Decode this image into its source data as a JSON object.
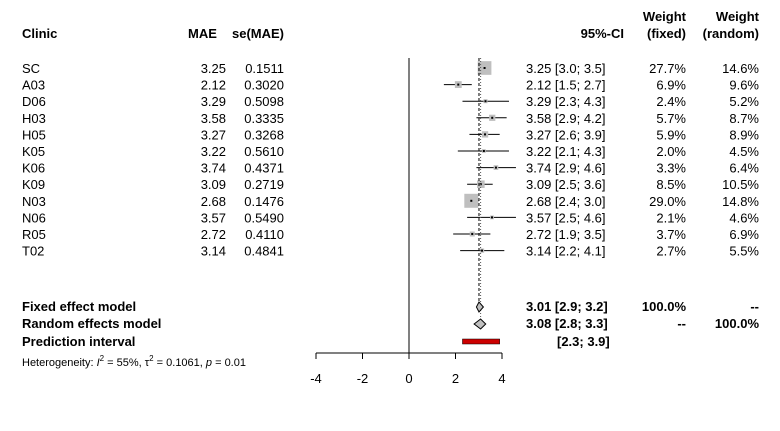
{
  "chart_data": {
    "type": "forest",
    "headers": {
      "clinic": "Clinic",
      "mae": "MAE",
      "se": "se(MAE)",
      "ci": "95%-CI",
      "weight_fixed_line1": "Weight",
      "weight_fixed_line2": "(fixed)",
      "weight_random_line1": "Weight",
      "weight_random_line2": "(random)"
    },
    "studies": [
      {
        "clinic": "SC",
        "mae": "3.25",
        "se": "0.1511",
        "ci_text": "3.25 [3.0; 3.5]",
        "w_fixed": "27.7%",
        "w_random": "14.6%",
        "est": 3.25,
        "lo": 3.0,
        "hi": 3.5,
        "weight": 27.7
      },
      {
        "clinic": "A03",
        "mae": "2.12",
        "se": "0.3020",
        "ci_text": "2.12 [1.5; 2.7]",
        "w_fixed": "6.9%",
        "w_random": "9.6%",
        "est": 2.12,
        "lo": 1.5,
        "hi": 2.7,
        "weight": 6.9
      },
      {
        "clinic": "D06",
        "mae": "3.29",
        "se": "0.5098",
        "ci_text": "3.29 [2.3; 4.3]",
        "w_fixed": "2.4%",
        "w_random": "5.2%",
        "est": 3.29,
        "lo": 2.3,
        "hi": 4.3,
        "weight": 2.4
      },
      {
        "clinic": "H03",
        "mae": "3.58",
        "se": "0.3335",
        "ci_text": "3.58 [2.9; 4.2]",
        "w_fixed": "5.7%",
        "w_random": "8.7%",
        "est": 3.58,
        "lo": 2.9,
        "hi": 4.2,
        "weight": 5.7
      },
      {
        "clinic": "H05",
        "mae": "3.27",
        "se": "0.3268",
        "ci_text": "3.27 [2.6; 3.9]",
        "w_fixed": "5.9%",
        "w_random": "8.9%",
        "est": 3.27,
        "lo": 2.6,
        "hi": 3.9,
        "weight": 5.9
      },
      {
        "clinic": "K05",
        "mae": "3.22",
        "se": "0.5610",
        "ci_text": "3.22 [2.1; 4.3]",
        "w_fixed": "2.0%",
        "w_random": "4.5%",
        "est": 3.22,
        "lo": 2.1,
        "hi": 4.3,
        "weight": 2.0
      },
      {
        "clinic": "K06",
        "mae": "3.74",
        "se": "0.4371",
        "ci_text": "3.74 [2.9; 4.6]",
        "w_fixed": "3.3%",
        "w_random": "6.4%",
        "est": 3.74,
        "lo": 2.9,
        "hi": 4.6,
        "weight": 3.3
      },
      {
        "clinic": "K09",
        "mae": "3.09",
        "se": "0.2719",
        "ci_text": "3.09 [2.5; 3.6]",
        "w_fixed": "8.5%",
        "w_random": "10.5%",
        "est": 3.09,
        "lo": 2.5,
        "hi": 3.6,
        "weight": 8.5
      },
      {
        "clinic": "N03",
        "mae": "2.68",
        "se": "0.1476",
        "ci_text": "2.68 [2.4; 3.0]",
        "w_fixed": "29.0%",
        "w_random": "14.8%",
        "est": 2.68,
        "lo": 2.4,
        "hi": 3.0,
        "weight": 29.0
      },
      {
        "clinic": "N06",
        "mae": "3.57",
        "se": "0.5490",
        "ci_text": "3.57 [2.5; 4.6]",
        "w_fixed": "2.1%",
        "w_random": "4.6%",
        "est": 3.57,
        "lo": 2.5,
        "hi": 4.6,
        "weight": 2.1
      },
      {
        "clinic": "R05",
        "mae": "2.72",
        "se": "0.4110",
        "ci_text": "2.72 [1.9; 3.5]",
        "w_fixed": "3.7%",
        "w_random": "6.9%",
        "est": 2.72,
        "lo": 1.9,
        "hi": 3.5,
        "weight": 3.7
      },
      {
        "clinic": "T02",
        "mae": "3.14",
        "se": "0.4841",
        "ci_text": "3.14 [2.2; 4.1]",
        "w_fixed": "2.7%",
        "w_random": "5.5%",
        "est": 3.14,
        "lo": 2.2,
        "hi": 4.1,
        "weight": 2.7
      }
    ],
    "fixed": {
      "label": "Fixed effect model",
      "ci_text": "3.01 [2.9; 3.2]",
      "w_fixed": "100.0%",
      "w_random": "--",
      "est": 3.01,
      "lo": 2.9,
      "hi": 3.2
    },
    "random": {
      "label": "Random effects model",
      "ci_text": "3.08 [2.8; 3.3]",
      "w_fixed": "--",
      "w_random": "100.0%",
      "est": 3.08,
      "lo": 2.8,
      "hi": 3.3
    },
    "prediction": {
      "label": "Prediction interval",
      "ci_text": "[2.3; 3.9]",
      "lo": 2.3,
      "hi": 3.9
    },
    "heterogeneity": {
      "prefix": "Heterogeneity: ",
      "i2_sym": "I",
      "i2_val": " = 55%, ",
      "tau_sym": "τ",
      "tau_val": " = 0.1061, ",
      "p_sym": "p",
      "p_val": " = 0.01"
    },
    "xaxis": {
      "ticks": [
        -4,
        -2,
        0,
        2,
        4
      ],
      "range": [
        -4,
        4
      ]
    },
    "colors": {
      "study_box": "#bfbfbf",
      "prediction": "#cc0000"
    }
  }
}
